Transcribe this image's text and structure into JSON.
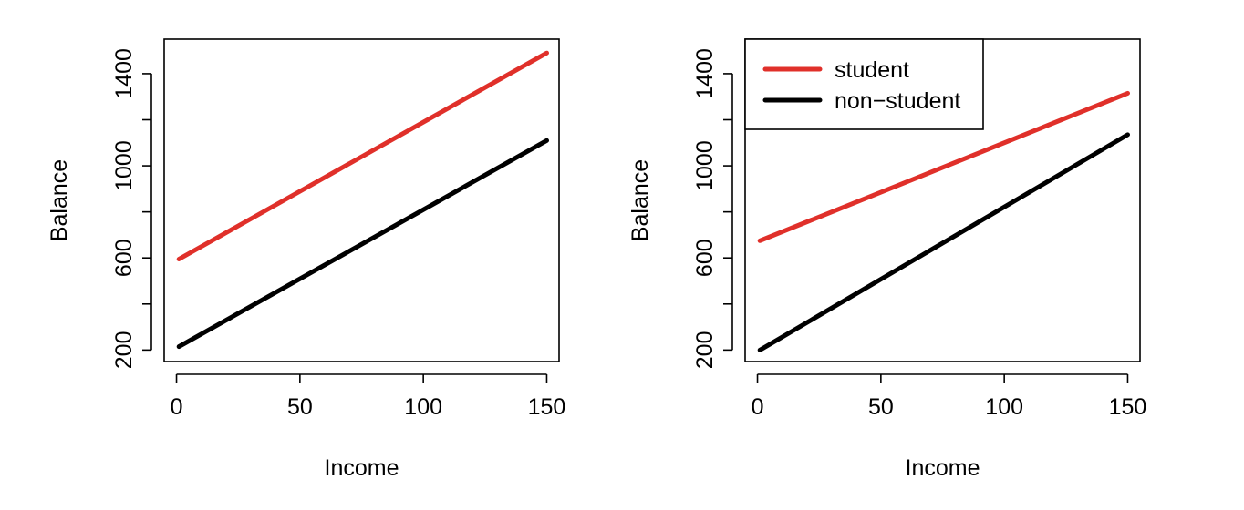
{
  "chart_data": [
    {
      "type": "line",
      "xlabel": "Income",
      "ylabel": "Balance",
      "xlim": [
        -5,
        155
      ],
      "ylim": [
        150,
        1550
      ],
      "xticks": [
        0,
        50,
        100,
        150
      ],
      "xtick_labels": [
        "0",
        "50",
        "100",
        "150"
      ],
      "yticks": [
        200,
        400,
        600,
        800,
        1000,
        1200,
        1400
      ],
      "ytick_labels": [
        "200",
        "",
        "600",
        "",
        "1000",
        "",
        "1400"
      ],
      "grid": false,
      "series": [
        {
          "key": "student",
          "color": "#e0302a",
          "x": [
            1,
            150
          ],
          "y": [
            595,
            1490
          ]
        },
        {
          "key": "non-student",
          "color": "#000000",
          "x": [
            1,
            150
          ],
          "y": [
            215,
            1110
          ]
        }
      ]
    },
    {
      "type": "line",
      "xlabel": "Income",
      "ylabel": "Balance",
      "xlim": [
        -5,
        155
      ],
      "ylim": [
        150,
        1550
      ],
      "xticks": [
        0,
        50,
        100,
        150
      ],
      "xtick_labels": [
        "0",
        "50",
        "100",
        "150"
      ],
      "yticks": [
        200,
        400,
        600,
        800,
        1000,
        1200,
        1400
      ],
      "ytick_labels": [
        "200",
        "",
        "600",
        "",
        "1000",
        "",
        "1400"
      ],
      "grid": false,
      "legend": {
        "placement": "top-left",
        "entries": [
          {
            "name": "student",
            "color": "#e0302a"
          },
          {
            "name": "non−student",
            "color": "#000000"
          }
        ]
      },
      "series": [
        {
          "name": "student",
          "color": "#e0302a",
          "x": [
            1,
            150
          ],
          "y": [
            675,
            1315
          ]
        },
        {
          "name": "non−student",
          "color": "#000000",
          "x": [
            1,
            150
          ],
          "y": [
            200,
            1135
          ]
        }
      ]
    }
  ]
}
